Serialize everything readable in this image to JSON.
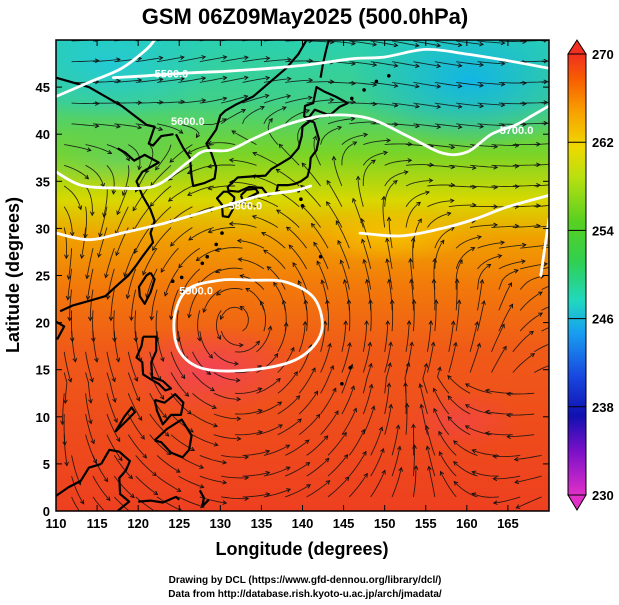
{
  "title": "GSM 06Z09May2025 (500.0hPa)",
  "xlabel": "Longitude (degrees)",
  "ylabel": "Latitude  (degrees)",
  "credits": [
    "Drawing by DCL (https://www.gfd-dennou.org/library/dcl/)",
    "Data from http://database.rish.kyoto-u.ac.jp/arch/jmadata/"
  ],
  "chart_data": {
    "type": "map",
    "field": "temperature (shaded) with geopotential height contours and streamlines",
    "level": "500.0hPa",
    "x_range": [
      110,
      170
    ],
    "y_range": [
      0,
      50
    ],
    "x_ticks": [
      110,
      115,
      120,
      125,
      130,
      135,
      140,
      145,
      150,
      155,
      160,
      165
    ],
    "y_ticks": [
      0,
      5,
      10,
      15,
      20,
      25,
      30,
      35,
      40,
      45
    ],
    "colorbar": {
      "min": 230,
      "max": 270,
      "ticks": [
        230,
        238,
        246,
        254,
        262,
        270
      ],
      "colors": [
        "#e030c8",
        "#7a10c8",
        "#1010b0",
        "#1848e0",
        "#18a0f0",
        "#20d8c0",
        "#30d050",
        "#50d020",
        "#a8e010",
        "#f0e000",
        "#f8a000",
        "#f86000",
        "#f03020"
      ]
    },
    "contour_labels": [
      {
        "text": "5900.0",
        "lon": 125,
        "lat": 23
      },
      {
        "text": "5800.0",
        "lon": 131,
        "lat": 32
      },
      {
        "text": "5600.0",
        "lon": 124,
        "lat": 41
      },
      {
        "text": "5500.0",
        "lon": 122,
        "lat": 46
      },
      {
        "text": "5700.0",
        "lon": 164,
        "lat": 40
      }
    ],
    "contours": [
      {
        "name": "5900",
        "closed": true,
        "points": [
          [
            124.4,
            20.5
          ],
          [
            126,
            23.5
          ],
          [
            130,
            24.5
          ],
          [
            134,
            24.5
          ],
          [
            138,
            24.3
          ],
          [
            141.5,
            22.5
          ],
          [
            142.3,
            19
          ],
          [
            139.5,
            16.2
          ],
          [
            134,
            15
          ],
          [
            128,
            15.1
          ],
          [
            125,
            17
          ]
        ]
      },
      {
        "name": "5800",
        "closed": false,
        "points": [
          [
            110,
            29.5
          ],
          [
            114,
            28.8
          ],
          [
            118,
            29.5
          ],
          [
            123,
            30.5
          ],
          [
            127,
            31.5
          ],
          [
            131,
            32.5
          ],
          [
            135,
            33.5
          ],
          [
            139,
            34
          ],
          [
            141,
            34.5
          ]
        ]
      },
      {
        "name": "5800-east",
        "closed": false,
        "points": [
          [
            147,
            29.5
          ],
          [
            152,
            29.2
          ],
          [
            157,
            30
          ],
          [
            161,
            31
          ],
          [
            165,
            32.3
          ],
          [
            170,
            33.5
          ]
        ]
      },
      {
        "name": "5800-east2",
        "closed": false,
        "points": [
          [
            170,
            31
          ],
          [
            169.5,
            28
          ],
          [
            169,
            25
          ]
        ]
      },
      {
        "name": "5700",
        "closed": false,
        "points": [
          [
            110,
            36
          ],
          [
            113,
            34.6
          ],
          [
            117,
            34.3
          ],
          [
            122,
            34.5
          ],
          [
            126,
            37
          ],
          [
            128,
            38.2
          ],
          [
            131,
            38.3
          ],
          [
            134,
            39.5
          ],
          [
            138,
            41
          ],
          [
            143,
            42
          ],
          [
            148,
            41.7
          ],
          [
            153,
            39.7
          ],
          [
            157,
            38
          ],
          [
            160,
            38.1
          ],
          [
            163,
            40
          ],
          [
            166,
            41
          ],
          [
            168,
            42
          ],
          [
            170,
            43
          ]
        ]
      },
      {
        "name": "5600",
        "closed": false,
        "points": [
          [
            110,
            44
          ],
          [
            114,
            45.5
          ],
          [
            118,
            47
          ],
          [
            121,
            49
          ],
          [
            122,
            50
          ]
        ]
      },
      {
        "name": "5500",
        "closed": false,
        "points": [
          [
            117,
            46
          ],
          [
            121,
            46.2
          ],
          [
            126,
            46.5
          ],
          [
            131,
            46.7
          ],
          [
            136,
            47
          ],
          [
            141,
            47.4
          ],
          [
            146,
            48
          ],
          [
            150,
            48.2
          ],
          [
            155,
            49
          ],
          [
            160,
            48.5
          ],
          [
            165,
            47.8
          ],
          [
            170,
            47
          ]
        ]
      }
    ]
  }
}
